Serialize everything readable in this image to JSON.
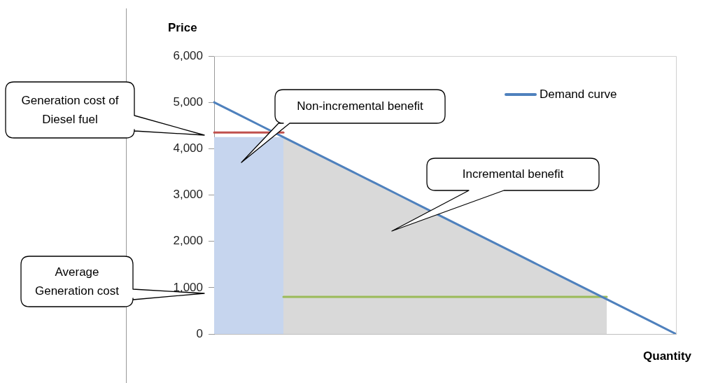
{
  "chart_data": {
    "type": "line",
    "xlabel": "Quantity",
    "ylabel": "Price",
    "categories": [
      null,
      null,
      null,
      null,
      null,
      null,
      null,
      null,
      null,
      null,
      null,
      null,
      null,
      null,
      null,
      null,
      null,
      null,
      null,
      null,
      null
    ],
    "series": [
      {
        "type": "area",
        "color": "#c6d5ee",
        "values": [
          4250,
          4250,
          4250,
          4250,
          null,
          null,
          null,
          null,
          null,
          null,
          null,
          null,
          null,
          null,
          null,
          null,
          null,
          null,
          null,
          null,
          null
        ]
      },
      {
        "type": "area",
        "color": "#d9d9d9",
        "values": [
          null,
          null,
          null,
          4250,
          4000,
          3750,
          3500,
          3250,
          3000,
          2750,
          2500,
          2250,
          2000,
          1750,
          1500,
          1250,
          1000,
          750,
          null,
          null,
          null
        ]
      },
      {
        "type": "line",
        "color": "#9bbb59",
        "values": [
          null,
          null,
          null,
          800,
          800,
          800,
          800,
          800,
          800,
          800,
          800,
          800,
          800,
          800,
          800,
          800,
          800,
          800,
          null,
          null,
          null
        ]
      },
      {
        "type": "line",
        "color": "#c0504d",
        "values": [
          4350,
          4350,
          4350,
          4350,
          null,
          null,
          null,
          null,
          null,
          null,
          null,
          null,
          null,
          null,
          null,
          null,
          null,
          null,
          null,
          null,
          null
        ]
      },
      {
        "type": "line",
        "name": "Demand curve",
        "color": "#4f81bd",
        "values": [
          5000,
          4750,
          4500,
          4250,
          4000,
          3750,
          3500,
          3250,
          3000,
          2750,
          2500,
          2250,
          2000,
          1750,
          1500,
          1250,
          1000,
          750,
          500,
          250,
          0
        ]
      }
    ],
    "ylim": [
      0,
      6000
    ],
    "yticks": [
      {
        "value": 0,
        "label": "0"
      },
      {
        "value": 1000,
        "label": "1,000"
      },
      {
        "value": 2000,
        "label": "2,000"
      },
      {
        "value": 3000,
        "label": "3,000"
      },
      {
        "value": 4000,
        "label": "4,000"
      },
      {
        "value": 5000,
        "label": "5,000"
      },
      {
        "value": 6000,
        "label": "6,000"
      }
    ],
    "tick_labels": "y",
    "legend": "top right",
    "marker": "none",
    "annotations": [
      "Generation cost of Diesel fuel",
      "Non-incremental benefit",
      "Incremental benefit",
      "Average Generation cost"
    ]
  }
}
